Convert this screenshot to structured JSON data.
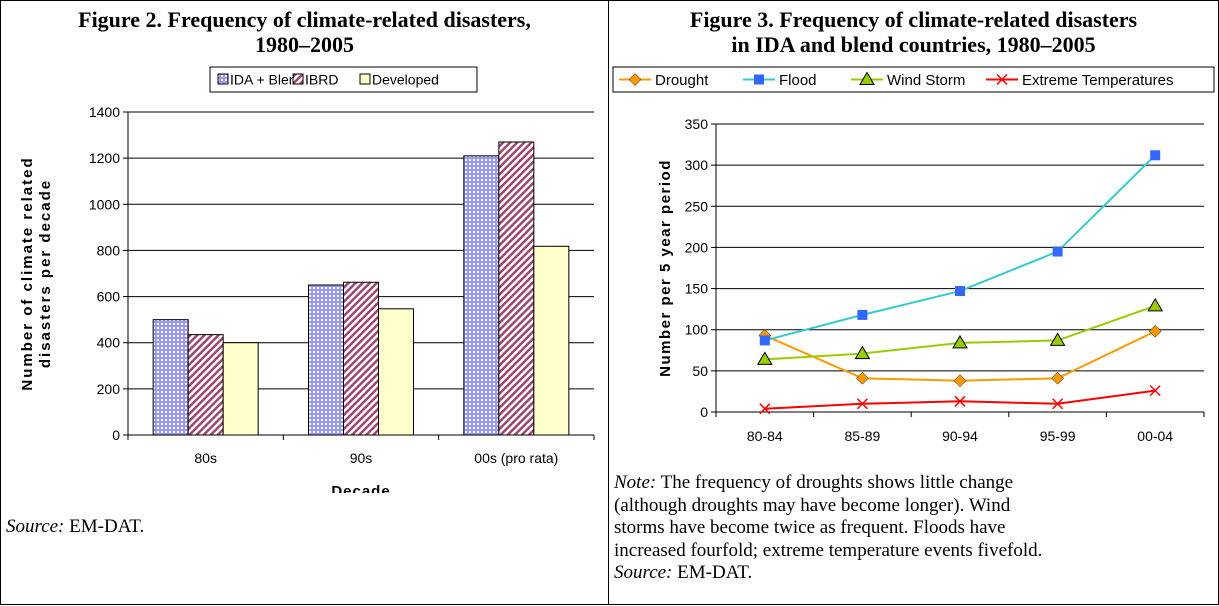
{
  "figure2": {
    "title_line1": "Figure 2. Frequency of climate-related disasters,",
    "title_line2": "1980–2005",
    "source_label": "Source:",
    "source_text": " EM-DAT.",
    "chart_data": {
      "type": "bar",
      "categories": [
        "80s",
        "90s",
        "00s (pro rata)"
      ],
      "series": [
        {
          "name": "IDA + Blend",
          "values": [
            500,
            650,
            1210
          ],
          "color": "#9a9af0"
        },
        {
          "name": "IBRD",
          "values": [
            435,
            662,
            1270
          ],
          "color": "#a0466e"
        },
        {
          "name": "Developed",
          "values": [
            400,
            547,
            818
          ],
          "color": "#ffffcc"
        }
      ],
      "xlabel": "Decade",
      "ylabel_line1": "Number of climate related",
      "ylabel_line2": "disasters per decade",
      "ylim": [
        0,
        1400
      ],
      "yticks": [
        "0",
        "200",
        "400",
        "600",
        "800",
        "1000",
        "1200",
        "1400"
      ],
      "grid": true,
      "legend_position": "top"
    }
  },
  "figure3": {
    "title_line1": "Figure 3. Frequency of climate-related disasters",
    "title_line2": "in IDA and blend countries, 1980–2005",
    "note_label": "Note:",
    "note_line1": " The frequency of droughts shows little change",
    "note_line2": "(although droughts may have become longer). Wind",
    "note_line3": "storms have become twice as frequent. Floods have",
    "note_line4": "increased fourfold; extreme temperature events fivefold.",
    "source_label": "Source:",
    "source_text": " EM-DAT.",
    "chart_data": {
      "type": "line",
      "categories": [
        "80-84",
        "85-89",
        "90-94",
        "95-99",
        "00-04"
      ],
      "series": [
        {
          "name": "Drought",
          "values": [
            93,
            41,
            38,
            41,
            98
          ],
          "color": "#ff9900",
          "marker": "diamond",
          "marker_color": "#ff9900"
        },
        {
          "name": "Flood",
          "values": [
            87,
            118,
            147,
            195,
            312
          ],
          "color": "#33cccc",
          "marker": "square",
          "marker_color": "#3366ff"
        },
        {
          "name": "Wind Storm",
          "values": [
            64,
            71,
            84,
            87,
            129
          ],
          "color": "#99cc00",
          "marker": "triangle",
          "marker_color": "#99cc00"
        },
        {
          "name": "Extreme Temperatures",
          "values": [
            4,
            10,
            13,
            10,
            26
          ],
          "color": "#ff0000",
          "marker": "x",
          "marker_color": "#ff0000"
        }
      ],
      "ylabel": "Number per 5 year period",
      "ylim": [
        0,
        350
      ],
      "yticks": [
        "0",
        "50",
        "100",
        "150",
        "200",
        "250",
        "300",
        "350"
      ],
      "grid": true,
      "legend_position": "top"
    }
  }
}
